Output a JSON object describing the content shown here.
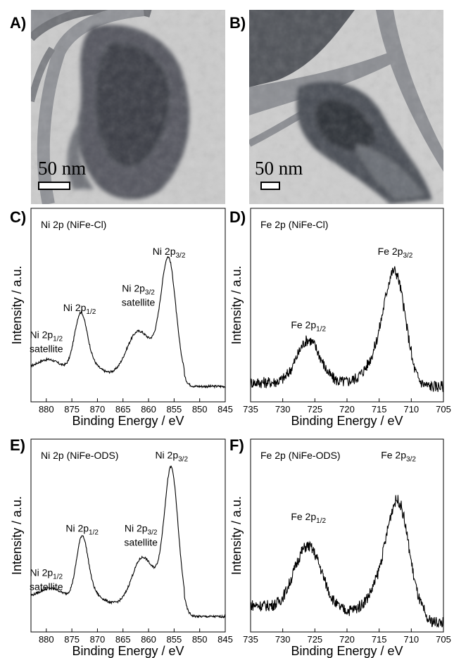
{
  "panels": {
    "A": {
      "label": "A)",
      "scale": "50 nm"
    },
    "B": {
      "label": "B)",
      "scale": "50 nm"
    },
    "C": {
      "label": "C)"
    },
    "D": {
      "label": "D)"
    },
    "E": {
      "label": "E)"
    },
    "F": {
      "label": "F)"
    }
  },
  "colors": {
    "line": "#000000",
    "tem_bg": "#c9c9c9",
    "tem_dark": "#3a3d44"
  },
  "chart_data": [
    {
      "id": "C",
      "type": "line",
      "title": "Ni 2p (NiFe-Cl)",
      "xlabel": "Binding Energy / eV",
      "ylabel": "Intensity / a.u.",
      "xlim": [
        845,
        883
      ],
      "x_reversed": true,
      "xticks": [
        880,
        875,
        870,
        865,
        860,
        855,
        850,
        845
      ],
      "ylim": [
        0,
        1
      ],
      "peaks": [
        [
          879.5,
          0.055,
          2.2
        ],
        [
          873.3,
          0.26,
          1.2
        ],
        [
          872.0,
          0.06,
          2.0
        ],
        [
          862.5,
          0.2,
          2.0
        ],
        [
          860.5,
          0.06,
          1.5
        ],
        [
          856.0,
          0.56,
          1.4
        ],
        [
          857.8,
          0.12,
          1.6
        ]
      ],
      "baseline": {
        "start": 0.17,
        "end": 0.1,
        "x_end_drop": 853
      },
      "noise": 0.006,
      "annotations": [
        {
          "text": "Ni 2p",
          "sub": "3/2",
          "x": 856,
          "y": 0.76
        },
        {
          "text": "Ni 2p",
          "sub": "1/2",
          "x": 873.5,
          "y": 0.47
        },
        {
          "text": "Ni 2p",
          "sub": "3/2",
          "text2": "satellite",
          "x": 862,
          "y": 0.57
        },
        {
          "text": "Ni 2p",
          "sub": "1/2",
          "text2": "satellite",
          "x": 880,
          "y": 0.33
        }
      ]
    },
    {
      "id": "D",
      "type": "line",
      "title": "Fe 2p (NiFe-Cl)",
      "xlabel": "Binding Energy / eV",
      "ylabel": "Intensity / a.u.",
      "xlim": [
        705,
        735
      ],
      "x_reversed": true,
      "xticks": [
        735,
        730,
        725,
        720,
        715,
        710,
        705
      ],
      "ylim": [
        0,
        1
      ],
      "peaks": [
        [
          726.0,
          0.22,
          1.8
        ],
        [
          712.5,
          0.52,
          1.6
        ],
        [
          715.0,
          0.12,
          2.0
        ]
      ],
      "baseline": {
        "start": 0.1,
        "end": 0.1,
        "x_end_drop": 710
      },
      "noise": 0.03,
      "annotations": [
        {
          "text": "Fe 2p",
          "sub": "3/2",
          "x": 712.5,
          "y": 0.76
        },
        {
          "text": "Fe 2p",
          "sub": "1/2",
          "x": 726,
          "y": 0.38
        }
      ]
    },
    {
      "id": "E",
      "type": "line",
      "title": "Ni 2p (NiFe-ODS)",
      "xlabel": "Binding Energy / eV",
      "ylabel": "Intensity / a.u.",
      "xlim": [
        845,
        883
      ],
      "x_reversed": true,
      "xticks": [
        880,
        875,
        870,
        865,
        860,
        855,
        850,
        845
      ],
      "ylim": [
        0,
        1
      ],
      "peaks": [
        [
          879.0,
          0.055,
          2.2
        ],
        [
          873.0,
          0.29,
          1.1
        ],
        [
          871.8,
          0.06,
          2.0
        ],
        [
          861.5,
          0.22,
          1.9
        ],
        [
          859.8,
          0.05,
          1.5
        ],
        [
          855.5,
          0.68,
          1.3
        ],
        [
          857.3,
          0.1,
          1.5
        ]
      ],
      "baseline": {
        "start": 0.18,
        "end": 0.1,
        "x_end_drop": 853
      },
      "noise": 0.006,
      "annotations": [
        {
          "text": "Ni 2p",
          "sub": "3/2",
          "x": 855.5,
          "y": 0.9
        },
        {
          "text": "Ni 2p",
          "sub": "1/2",
          "x": 873,
          "y": 0.52
        },
        {
          "text": "Ni 2p",
          "sub": "3/2",
          "text2": "satellite",
          "x": 861.5,
          "y": 0.52
        },
        {
          "text": "Ni 2p",
          "sub": "1/2",
          "text2": "satellite",
          "x": 880,
          "y": 0.29
        }
      ]
    },
    {
      "id": "F",
      "type": "line",
      "title": "Fe 2p (NiFe-ODS)",
      "xlabel": "Binding Energy / eV",
      "ylabel": "Intensity / a.u.",
      "xlim": [
        705,
        735
      ],
      "x_reversed": true,
      "xticks": [
        735,
        730,
        725,
        720,
        715,
        710,
        705
      ],
      "ylim": [
        0,
        1
      ],
      "peaks": [
        [
          727.0,
          0.2,
          1.8
        ],
        [
          725.0,
          0.18,
          1.8
        ],
        [
          712.0,
          0.55,
          1.7
        ],
        [
          714.8,
          0.12,
          2.0
        ]
      ],
      "baseline": {
        "start": 0.14,
        "end": 0.07,
        "x_end_drop": 708
      },
      "noise": 0.03,
      "annotations": [
        {
          "text": "Fe 2p",
          "sub": "3/2",
          "x": 712,
          "y": 0.9
        },
        {
          "text": "Fe 2p",
          "sub": "1/2",
          "x": 726,
          "y": 0.58
        }
      ]
    }
  ]
}
